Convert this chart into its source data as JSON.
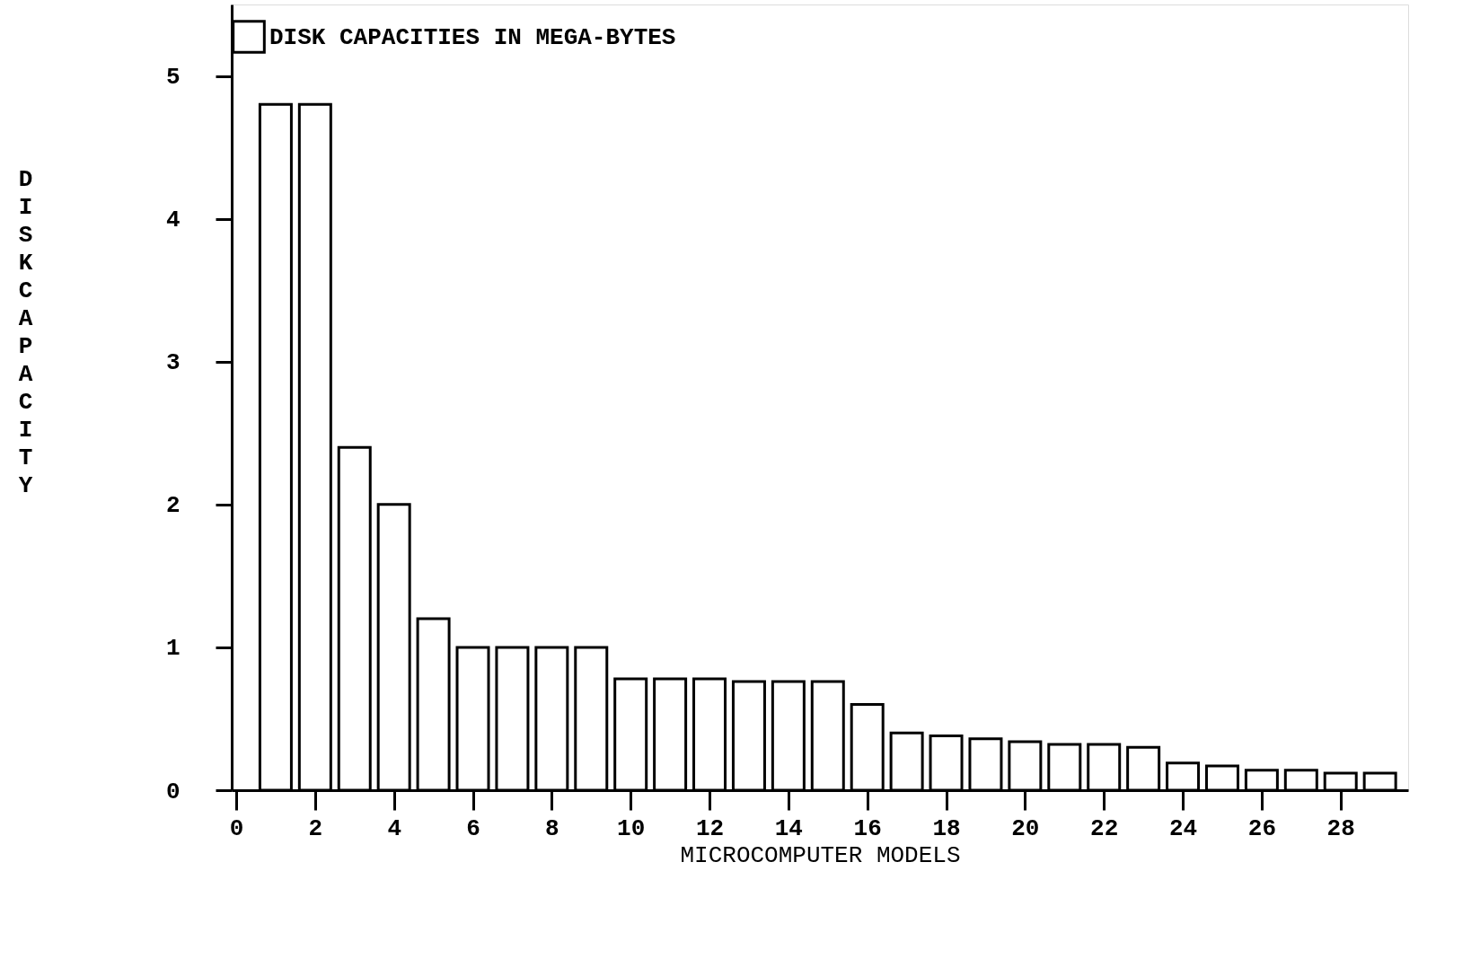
{
  "chart_data": {
    "type": "bar",
    "xlabel": "MICROCOMPUTER MODELS",
    "ylabel": "DISK CAPACITY",
    "x": [
      1,
      2,
      3,
      4,
      5,
      6,
      7,
      8,
      9,
      10,
      11,
      12,
      13,
      14,
      15,
      16,
      17,
      18,
      19,
      20,
      21,
      22,
      23,
      24,
      25,
      26,
      27,
      28,
      29
    ],
    "series": [
      {
        "name": "DISK CAPACITIES IN MEGA-BYTES",
        "color": "#ffffff",
        "values": [
          4.8,
          4.8,
          2.4,
          2.0,
          1.2,
          1.0,
          1.0,
          1.0,
          1.0,
          0.78,
          0.78,
          0.78,
          0.76,
          0.76,
          0.76,
          0.6,
          0.4,
          0.38,
          0.36,
          0.34,
          0.32,
          0.32,
          0.3,
          0.19,
          0.17,
          0.14,
          0.14,
          0.12,
          0.12
        ]
      }
    ],
    "xlim": [
      0,
      29.6
    ],
    "xticks": [
      0,
      2,
      4,
      6,
      8,
      10,
      12,
      14,
      16,
      18,
      20,
      22,
      24,
      26,
      28
    ],
    "ylim": [
      0,
      5.5
    ],
    "yticks": [
      0,
      1,
      2,
      3,
      4,
      5
    ],
    "legend": "top",
    "grid": false
  }
}
